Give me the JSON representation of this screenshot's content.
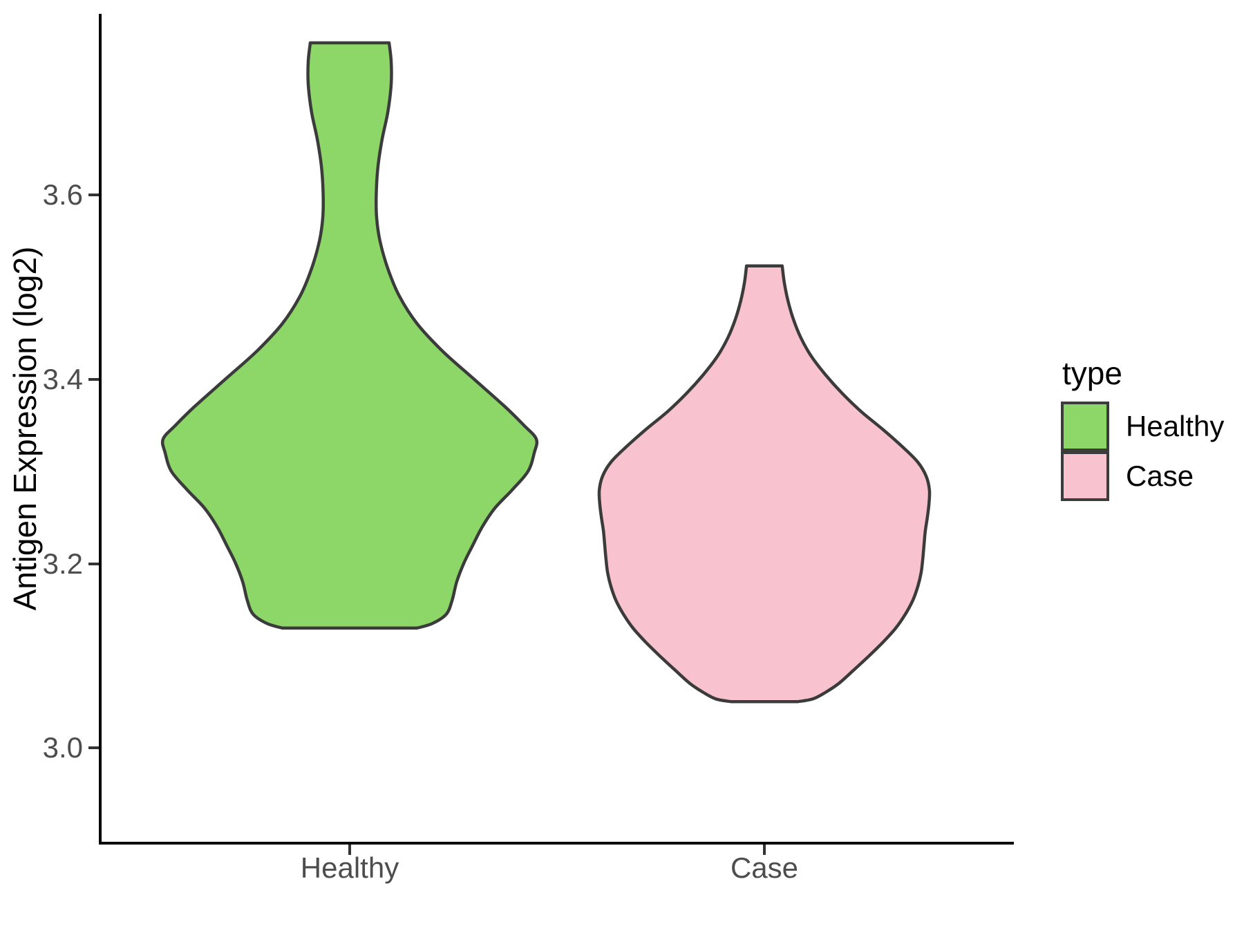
{
  "figure": {
    "background": "#FFFFFF",
    "axis_color": "#000000",
    "tick_color": "#333333",
    "tick_label_color": "#4D4D4D"
  },
  "y_axis": {
    "title": "Antigen Expression (log2)",
    "ticks": [
      "3.0",
      "3.2",
      "3.4",
      "3.6"
    ],
    "tick_values": [
      3.0,
      3.2,
      3.4,
      3.6
    ]
  },
  "x_axis": {
    "categories": [
      "Healthy",
      "Case"
    ]
  },
  "legend": {
    "title": "type",
    "entries": [
      {
        "label": "Healthy",
        "color": "#8CD767"
      },
      {
        "label": "Case",
        "color": "#F8C3CE"
      }
    ]
  },
  "chart_data": {
    "type": "violin",
    "title": "",
    "xlabel": "",
    "ylabel": "Antigen Expression (log2)",
    "categories": [
      "Healthy",
      "Case"
    ],
    "ylim": [
      2.9,
      3.8
    ],
    "grid": false,
    "legend_position": "right",
    "style": {
      "stroke": "#3B3B3B",
      "stroke_width": 4.5,
      "violin_width": 0.9
    },
    "series": [
      {
        "name": "Healthy",
        "color": "#8CD767",
        "value_range": [
          3.13,
          3.765
        ],
        "profile": [
          [
            3.765,
            0.095
          ],
          [
            3.745,
            0.1
          ],
          [
            3.72,
            0.1
          ],
          [
            3.69,
            0.092
          ],
          [
            3.66,
            0.078
          ],
          [
            3.63,
            0.068
          ],
          [
            3.6,
            0.064
          ],
          [
            3.575,
            0.065
          ],
          [
            3.55,
            0.073
          ],
          [
            3.52,
            0.092
          ],
          [
            3.49,
            0.12
          ],
          [
            3.46,
            0.163
          ],
          [
            3.43,
            0.225
          ],
          [
            3.4,
            0.3
          ],
          [
            3.37,
            0.375
          ],
          [
            3.35,
            0.42
          ],
          [
            3.335,
            0.45
          ],
          [
            3.32,
            0.445
          ],
          [
            3.3,
            0.43
          ],
          [
            3.28,
            0.392
          ],
          [
            3.26,
            0.35
          ],
          [
            3.24,
            0.32
          ],
          [
            3.22,
            0.297
          ],
          [
            3.2,
            0.275
          ],
          [
            3.18,
            0.258
          ],
          [
            3.16,
            0.247
          ],
          [
            3.145,
            0.233
          ],
          [
            3.135,
            0.2
          ],
          [
            3.13,
            0.163
          ]
        ]
      },
      {
        "name": "Case",
        "color": "#F8C3CE",
        "value_range": [
          3.05,
          3.523
        ],
        "profile": [
          [
            3.523,
            0.043
          ],
          [
            3.505,
            0.048
          ],
          [
            3.485,
            0.057
          ],
          [
            3.465,
            0.07
          ],
          [
            3.445,
            0.088
          ],
          [
            3.425,
            0.113
          ],
          [
            3.405,
            0.147
          ],
          [
            3.385,
            0.187
          ],
          [
            3.365,
            0.233
          ],
          [
            3.345,
            0.287
          ],
          [
            3.325,
            0.337
          ],
          [
            3.31,
            0.37
          ],
          [
            3.295,
            0.39
          ],
          [
            3.28,
            0.398
          ],
          [
            3.265,
            0.397
          ],
          [
            3.25,
            0.393
          ],
          [
            3.235,
            0.388
          ],
          [
            3.22,
            0.385
          ],
          [
            3.205,
            0.382
          ],
          [
            3.19,
            0.378
          ],
          [
            3.175,
            0.37
          ],
          [
            3.16,
            0.358
          ],
          [
            3.145,
            0.34
          ],
          [
            3.13,
            0.317
          ],
          [
            3.115,
            0.287
          ],
          [
            3.1,
            0.253
          ],
          [
            3.085,
            0.217
          ],
          [
            3.07,
            0.18
          ],
          [
            3.06,
            0.147
          ],
          [
            3.053,
            0.117
          ],
          [
            3.05,
            0.08
          ]
        ]
      }
    ]
  }
}
